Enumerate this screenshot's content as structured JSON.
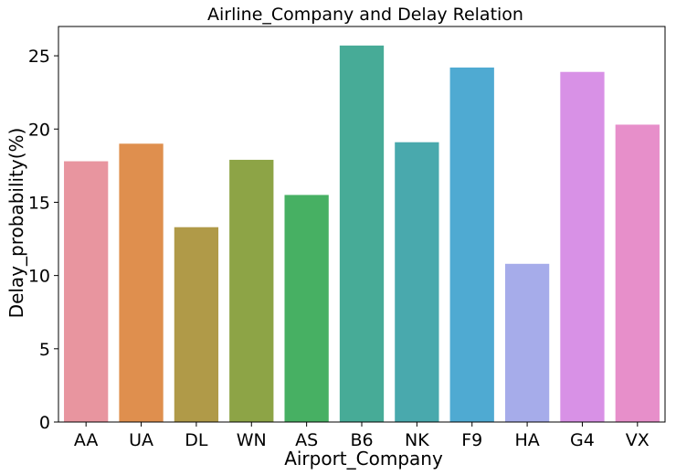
{
  "chart_data": {
    "type": "bar",
    "title": "Airline_Company and Delay Relation",
    "xlabel": "Airport_Company",
    "ylabel": "Delay_probability(%)",
    "categories": [
      "AA",
      "UA",
      "DL",
      "WN",
      "AS",
      "B6",
      "NK",
      "F9",
      "HA",
      "G4",
      "VX"
    ],
    "values": [
      17.8,
      19.0,
      13.3,
      17.9,
      15.5,
      25.7,
      19.1,
      24.2,
      10.8,
      23.9,
      20.3
    ],
    "colors": [
      "#e8959f",
      "#df8f4e",
      "#b09a48",
      "#8da446",
      "#47b063",
      "#47ab97",
      "#49a9ad",
      "#4faad2",
      "#a6acea",
      "#d891e6",
      "#e78fca"
    ],
    "ylim": [
      0,
      27
    ],
    "yticks": [
      0,
      5,
      10,
      15,
      20,
      25
    ],
    "grid": false,
    "legend": "none"
  }
}
